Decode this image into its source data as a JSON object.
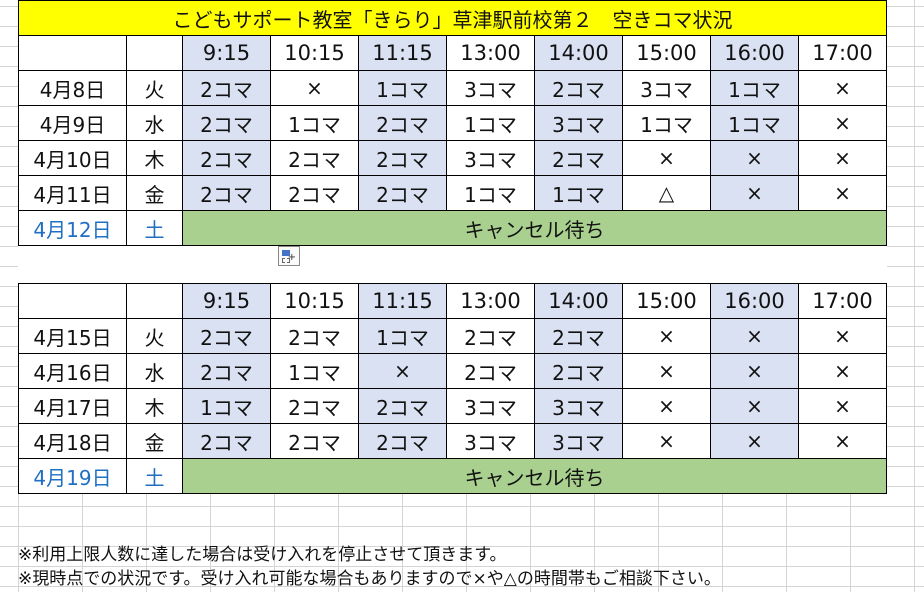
{
  "title": "こどもサポート教室「きらり」草津駅前校第２　空きコマ状況",
  "slots": [
    "9:15",
    "10:15",
    "11:15",
    "13:00",
    "14:00",
    "15:00",
    "16:00",
    "17:00"
  ],
  "week1": {
    "rows": [
      {
        "date": "4月8日",
        "day": "火",
        "cells": [
          "2コマ",
          "×",
          "1コマ",
          "3コマ",
          "2コマ",
          "3コマ",
          "1コマ",
          "×"
        ]
      },
      {
        "date": "4月9日",
        "day": "水",
        "cells": [
          "2コマ",
          "1コマ",
          "2コマ",
          "1コマ",
          "3コマ",
          "1コマ",
          "1コマ",
          "×"
        ]
      },
      {
        "date": "4月10日",
        "day": "木",
        "cells": [
          "2コマ",
          "2コマ",
          "2コマ",
          "3コマ",
          "2コマ",
          "×",
          "×",
          "×"
        ]
      },
      {
        "date": "4月11日",
        "day": "金",
        "cells": [
          "2コマ",
          "2コマ",
          "2コマ",
          "1コマ",
          "1コマ",
          "△",
          "×",
          "×"
        ]
      }
    ],
    "saturday": {
      "date": "4月12日",
      "day": "土",
      "text": "キャンセル待ち"
    }
  },
  "week2": {
    "rows": [
      {
        "date": "4月15日",
        "day": "火",
        "cells": [
          "2コマ",
          "2コマ",
          "1コマ",
          "2コマ",
          "2コマ",
          "×",
          "×",
          "×"
        ]
      },
      {
        "date": "4月16日",
        "day": "水",
        "cells": [
          "2コマ",
          "1コマ",
          "×",
          "2コマ",
          "2コマ",
          "×",
          "×",
          "×"
        ]
      },
      {
        "date": "4月17日",
        "day": "木",
        "cells": [
          "1コマ",
          "2コマ",
          "2コマ",
          "3コマ",
          "3コマ",
          "×",
          "×",
          "×"
        ]
      },
      {
        "date": "4月18日",
        "day": "金",
        "cells": [
          "2コマ",
          "2コマ",
          "2コマ",
          "3コマ",
          "3コマ",
          "×",
          "×",
          "×"
        ]
      }
    ],
    "saturday": {
      "date": "4月19日",
      "day": "土",
      "text": "キャンセル待ち"
    }
  },
  "notes": [
    "※利用上限人数に達した場合は受け入れを停止させて頂きます。",
    "※現時点での状況です。受け入れ可能な場合もありますので×や△の時間帯もご相談下さい。"
  ],
  "colors": {
    "title_bg": "#ffff00",
    "shade": "#d9e1f2",
    "cancel_bg": "#a9d08e",
    "saturday_text": "#1f6fc2"
  },
  "icons": {
    "paste_options": "paste-options-icon"
  }
}
